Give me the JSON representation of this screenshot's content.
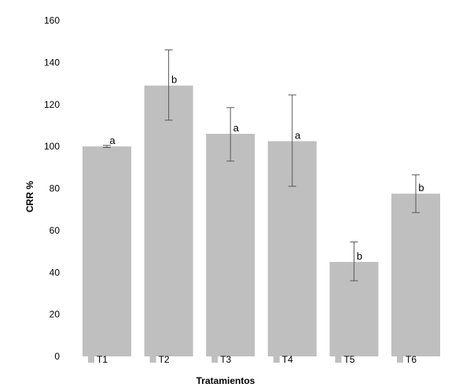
{
  "chart_data": {
    "type": "bar",
    "title": "",
    "xlabel": "Tratamientos",
    "ylabel": "CRR %",
    "ylim": [
      0,
      160
    ],
    "yticks": [
      0,
      20,
      40,
      60,
      80,
      100,
      120,
      140,
      160
    ],
    "grid": false,
    "legend": "bottom",
    "categories": [
      "T1",
      "T2",
      "T3",
      "T4",
      "T5",
      "T6"
    ],
    "series": [
      {
        "values": [
          100,
          129,
          106,
          102.5,
          45,
          77.5
        ],
        "error_low": [
          99.5,
          112.5,
          93,
          81,
          36,
          68.5
        ],
        "error_high": [
          100.5,
          146,
          118.5,
          124.5,
          54.5,
          86.5
        ],
        "labels": [
          "a",
          "b",
          "a",
          "a",
          "b",
          "b"
        ]
      }
    ],
    "colors": {
      "bar": "#bfbfbf",
      "error_bar": "#595959"
    }
  }
}
